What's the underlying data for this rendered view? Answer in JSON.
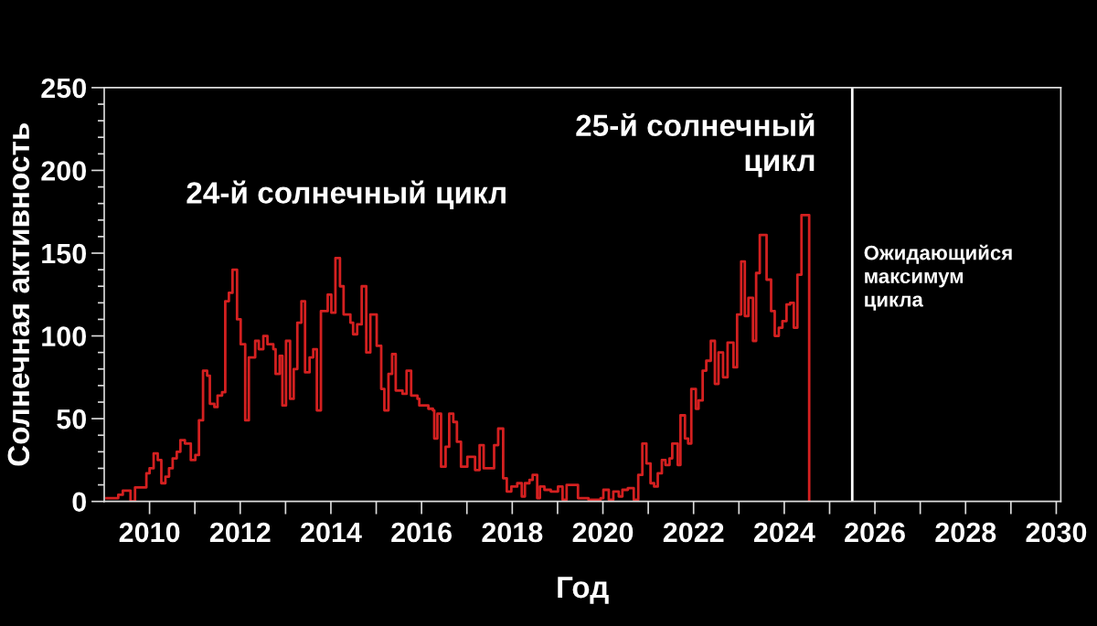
{
  "chart_data": {
    "type": "step",
    "xlabel": "Год",
    "ylabel": "Солнечная активность",
    "annotations": [
      "24-й солнечный цикл",
      "25-й солнечный\nцикл"
    ],
    "x": [
      2009.05,
      2009.31,
      2009.41,
      2009.58,
      2009.68,
      2009.93,
      2010.0,
      2010.09,
      2010.18,
      2010.26,
      2010.35,
      2010.43,
      2010.51,
      2010.6,
      2010.68,
      2010.78,
      2010.91,
      2011.01,
      2011.09,
      2011.18,
      2011.27,
      2011.33,
      2011.43,
      2011.5,
      2011.6,
      2011.67,
      2011.75,
      2011.83,
      2011.93,
      2012.01,
      2012.11,
      2012.19,
      2012.33,
      2012.41,
      2012.51,
      2012.6,
      2012.73,
      2012.78,
      2012.87,
      2012.93,
      2013.01,
      2013.1,
      2013.18,
      2013.26,
      2013.35,
      2013.43,
      2013.53,
      2013.61,
      2013.69,
      2013.78,
      2013.93,
      2014.01,
      2014.1,
      2014.2,
      2014.28,
      2014.43,
      2014.49,
      2014.58,
      2014.68,
      2014.78,
      2014.87,
      2015.01,
      2015.11,
      2015.18,
      2015.27,
      2015.35,
      2015.43,
      2015.58,
      2015.67,
      2015.77,
      2015.91,
      2015.95,
      2016.15,
      2016.25,
      2016.28,
      2016.35,
      2016.43,
      2016.53,
      2016.61,
      2016.7,
      2016.78,
      2016.87,
      2017.01,
      2017.18,
      2017.28,
      2017.37,
      2017.6,
      2017.69,
      2017.8,
      2017.88,
      2017.98,
      2018.11,
      2018.21,
      2018.28,
      2018.38,
      2018.45,
      2018.55,
      2018.61,
      2018.71,
      2018.85,
      2019.01,
      2019.11,
      2019.2,
      2019.45,
      2019.68,
      2019.95,
      2020.01,
      2020.13,
      2020.23,
      2020.35,
      2020.43,
      2020.55,
      2020.68,
      2020.78,
      2020.87,
      2020.96,
      2021.05,
      2021.13,
      2021.21,
      2021.3,
      2021.38,
      2021.47,
      2021.53,
      2021.65,
      2021.71,
      2021.81,
      2021.88,
      2021.95,
      2022.05,
      2022.11,
      2022.2,
      2022.28,
      2022.38,
      2022.47,
      2022.55,
      2022.65,
      2022.75,
      2022.88,
      2022.96,
      2023.05,
      2023.13,
      2023.21,
      2023.31,
      2023.38,
      2023.46,
      2023.61,
      2023.71,
      2023.79,
      2023.88,
      2023.96,
      2024.05,
      2024.13,
      2024.21,
      2024.29,
      2024.38,
      2024.55
    ],
    "series": [
      {
        "color": "#d42020",
        "values": [
          2,
          4,
          6.5,
          0,
          8.5,
          17,
          20,
          29,
          25,
          11,
          15,
          20,
          26,
          30,
          37,
          35,
          25,
          28,
          49,
          79,
          76,
          59,
          57,
          64,
          66,
          121,
          126,
          140,
          110,
          95,
          49,
          87,
          97,
          92,
          100,
          95,
          92,
          77,
          88,
          58,
          97,
          62,
          80,
          108,
          121,
          78,
          87,
          92,
          55,
          115,
          125,
          114,
          147,
          130,
          113,
          108,
          101,
          107,
          130,
          90,
          113,
          94,
          68,
          55,
          77,
          89,
          67,
          65,
          79,
          64,
          62,
          58,
          56,
          55,
          38,
          53,
          21,
          33,
          53,
          48,
          36,
          21,
          27,
          19,
          34,
          20,
          34,
          44,
          14,
          6,
          9,
          11,
          3,
          11,
          13,
          16,
          2,
          9,
          7,
          6,
          9,
          1,
          10,
          2,
          1,
          2,
          7,
          1,
          6,
          3,
          7,
          8,
          1,
          16,
          35,
          23,
          11,
          9,
          17,
          25,
          22,
          26,
          35,
          22,
          52,
          38,
          35,
          68,
          56,
          61,
          79,
          85,
          97,
          71,
          90,
          75,
          96,
          81,
          113,
          145,
          112,
          123,
          97,
          138,
          161,
          134,
          115,
          100,
          105,
          109,
          119,
          120,
          105,
          137,
          173,
          0
        ]
      }
    ],
    "xlim": [
      2009.0,
      2030.1
    ],
    "xticks": [
      2010,
      {
        "value": 2011,
        "label": null
      },
      2012,
      {
        "value": 2013,
        "label": null
      },
      2014,
      {
        "value": 2015,
        "label": null
      },
      2016,
      {
        "value": 2017,
        "label": null
      },
      2018,
      {
        "value": 2019,
        "label": null
      },
      2020,
      {
        "value": 2021,
        "label": null
      },
      2022,
      {
        "value": 2023,
        "label": null
      },
      2024,
      {
        "value": 2025,
        "label": null
      },
      2026,
      {
        "value": 2027,
        "label": null
      },
      2028,
      {
        "value": 2029,
        "label": null
      },
      2030
    ],
    "ylim": [
      0,
      250
    ],
    "yticks": [
      0,
      {
        "value": 10,
        "label": null
      },
      {
        "value": 20,
        "label": null
      },
      {
        "value": 30,
        "label": null
      },
      {
        "value": 40,
        "label": null
      },
      50,
      {
        "value": 60,
        "label": null
      },
      {
        "value": 70,
        "label": null
      },
      {
        "value": 80,
        "label": null
      },
      {
        "value": 90,
        "label": null
      },
      100,
      {
        "value": 110,
        "label": null
      },
      {
        "value": 120,
        "label": null
      },
      {
        "value": 130,
        "label": null
      },
      {
        "value": 140,
        "label": null
      },
      150,
      {
        "value": 160,
        "label": null
      },
      {
        "value": 170,
        "label": null
      },
      {
        "value": 180,
        "label": null
      },
      {
        "value": 190,
        "label": null
      },
      200,
      {
        "value": 210,
        "label": null
      },
      {
        "value": 220,
        "label": null
      },
      {
        "value": 230,
        "label": null
      },
      {
        "value": 240,
        "label": null
      },
      250
    ],
    "ref_lines": [
      {
        "axis": "x",
        "value": 2025.5,
        "label": "Ожидающийся\nмаксимум\nцикла",
        "color": "#ffffff"
      }
    ],
    "grid": false,
    "legend": false
  }
}
